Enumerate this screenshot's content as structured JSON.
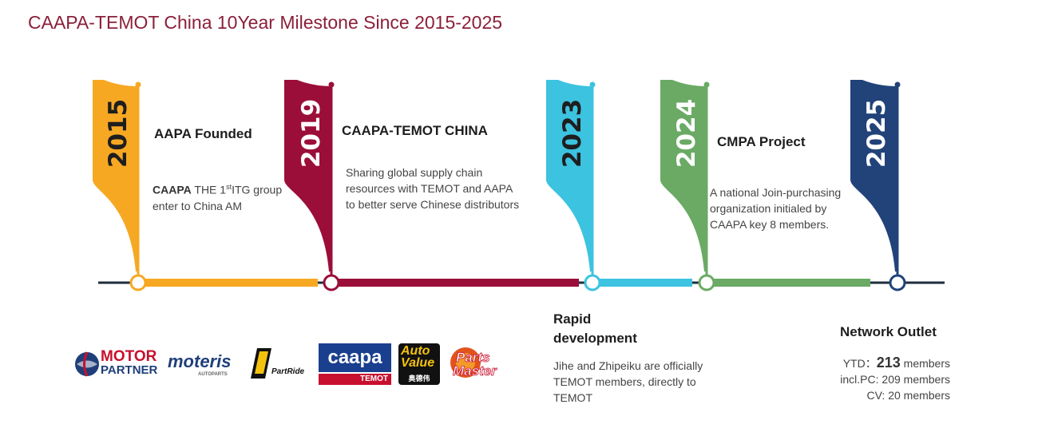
{
  "title": "CAAPA-TEMOT China 10Year Milestone Since 2015-2025",
  "milestones": [
    {
      "year": "2015",
      "color": "#f7a823",
      "heading": "AAPA Founded",
      "desc_strong": "CAAPA",
      "desc_pre": " THE 1",
      "desc_sup": "st",
      "desc_post": "ITG group enter to China AM"
    },
    {
      "year": "2019",
      "color": "#9b0e3a",
      "heading": "CAAPA-TEMOT CHINA",
      "desc": "Sharing global supply chain resources with TEMOT and AAPA to better serve Chinese distributors"
    },
    {
      "year": "2023",
      "color": "#3cc3e0",
      "heading": "Rapid development",
      "desc": "Jihe and Zhipeiku are officially TEMOT members, directly to TEMOT"
    },
    {
      "year": "2024",
      "color": "#6aaa64",
      "heading": "CMPA Project",
      "desc": "A national Join-purchasing organization initialed by CAAPA key 8 members."
    },
    {
      "year": "2025",
      "color": "#21437a",
      "heading": "Network Outlet",
      "ytd_label": "YTD：",
      "ytd_value": "213",
      "ytd_suffix": " members",
      "line2": "incl.PC: 209 members",
      "line3": "CV: 20 members"
    }
  ],
  "timeline_color": "#1f2d3d",
  "logos": {
    "motor_partner_1": "MOTOR",
    "motor_partner_2": "PARTNER",
    "moteris": "moteris",
    "moteris_sub": "AUTOPARTS",
    "partride": "PartRide",
    "caapa": "caapa",
    "caapa_sub": "TEMOT",
    "autovalue_1": "Auto",
    "autovalue_2": "Value",
    "autovalue_cn": "奥德伟",
    "partsmaster_1": "Parts",
    "partsmaster_2": "Master"
  }
}
